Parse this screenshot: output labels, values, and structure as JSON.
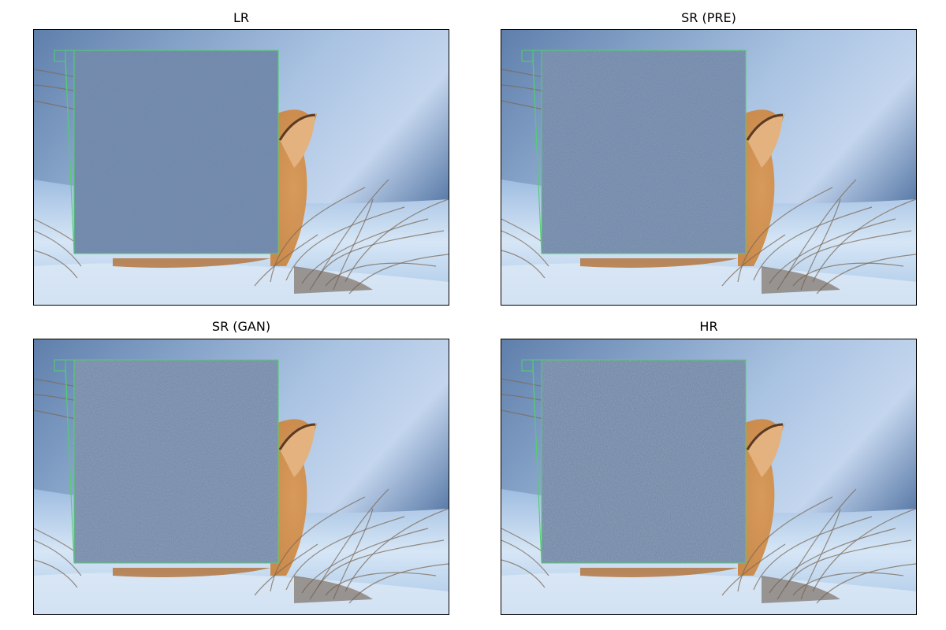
{
  "figure": {
    "panels": [
      {
        "title": "LR",
        "crop_fill": "#6f88ac",
        "noise_opacity": 0.1
      },
      {
        "title": "SR (PRE)",
        "crop_fill": "#7089ad",
        "noise_opacity": 0.28
      },
      {
        "title": "SR (GAN)",
        "crop_fill": "#7189ae",
        "noise_opacity": 0.4
      },
      {
        "title": "HR",
        "crop_fill": "#6d87ab",
        "noise_opacity": 0.45
      }
    ],
    "colors": {
      "sky_top": "#5f7fab",
      "sky_mid": "#a9c3e2",
      "snow": "#d6e6f6",
      "snow_shadow": "#9fbde0",
      "fox_fur": "#c98a4b",
      "fox_dark": "#5a3a24",
      "grass": "#7b6a5a",
      "box_outline": "#4fd16a"
    }
  }
}
